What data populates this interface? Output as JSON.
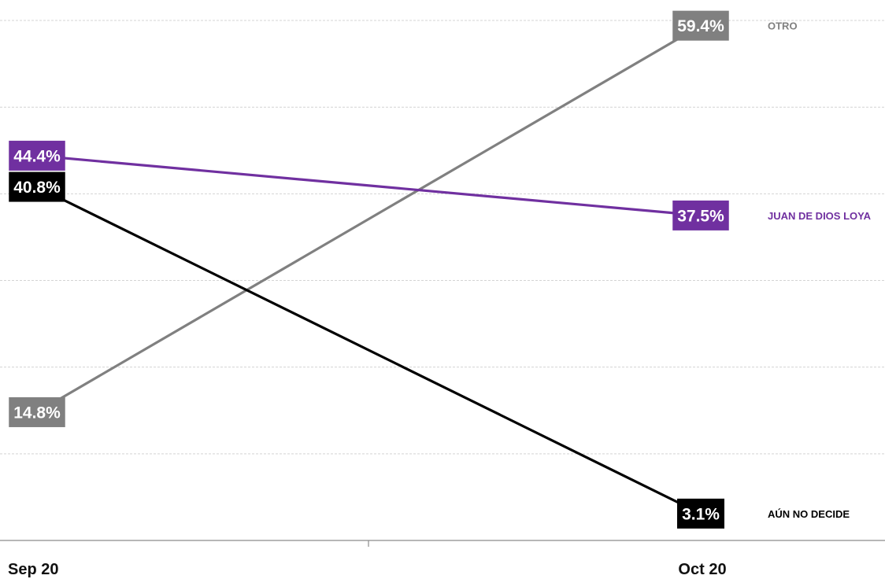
{
  "chart_data": {
    "type": "line",
    "x": [
      "Sep 20",
      "Oct 20"
    ],
    "ylim": [
      0,
      62
    ],
    "grid": true,
    "series": [
      {
        "name": "OTRO",
        "values": [
          14.8,
          59.4
        ],
        "labels": [
          "14.8%",
          "59.4%"
        ],
        "color": "#808080"
      },
      {
        "name": "JUAN DE DIOS LOYA",
        "values": [
          44.4,
          37.5
        ],
        "labels": [
          "44.4%",
          "37.5%"
        ],
        "color": "#7030A0"
      },
      {
        "name": "AÚN NO DECIDE",
        "values": [
          40.8,
          3.1
        ],
        "labels": [
          "40.8%",
          "3.1%"
        ],
        "color": "#000000"
      }
    ]
  }
}
